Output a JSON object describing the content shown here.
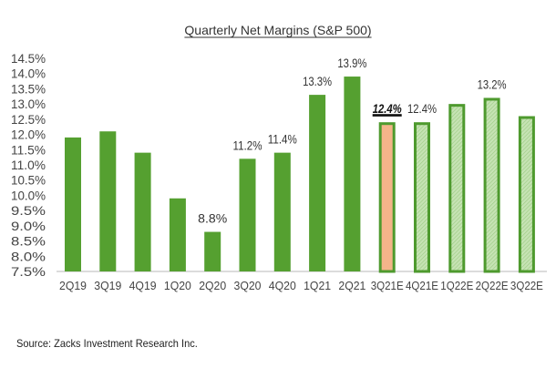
{
  "chart_data": {
    "type": "bar",
    "title": "Quarterly Net Margins (S&P 500)",
    "categories": [
      "2Q19",
      "3Q19",
      "4Q19",
      "1Q20",
      "2Q20",
      "3Q20",
      "4Q20",
      "1Q21",
      "2Q21",
      "3Q21E",
      "4Q21E",
      "1Q22E",
      "2Q22E",
      "3Q22E"
    ],
    "values": [
      11.9,
      12.1,
      11.4,
      9.9,
      8.8,
      11.2,
      11.4,
      13.3,
      13.9,
      12.4,
      12.4,
      13.0,
      13.2,
      12.6
    ],
    "data_labels": [
      "",
      "",
      "",
      "",
      "8.8%",
      "11.2%",
      "11.4%",
      "13.3%",
      "13.9%",
      "12.4%",
      "12.4%",
      "",
      "13.2%",
      ""
    ],
    "estimate": [
      false,
      false,
      false,
      false,
      false,
      false,
      false,
      false,
      false,
      true,
      true,
      true,
      true,
      true
    ],
    "highlight_index": 9,
    "ylim": [
      7.5,
      14.5
    ],
    "yticks": [
      "7.5%",
      "8.0%",
      "8.5%",
      "9.0%",
      "9.5%",
      "10.0%",
      "10.5%",
      "11.0%",
      "11.5%",
      "12.0%",
      "12.5%",
      "13.0%",
      "13.5%",
      "14.0%",
      "14.5%"
    ],
    "xlabel": "",
    "ylabel": "",
    "grid": false,
    "legend": "none",
    "colors": {
      "actual": "#55a030",
      "estimate_fill": "#b5d9a0",
      "estimate_border": "#4e9a2e",
      "highlight_fill": "#f4b48a",
      "axis": "#d0d0d0"
    }
  },
  "source": "Source: Zacks Investment Research Inc."
}
